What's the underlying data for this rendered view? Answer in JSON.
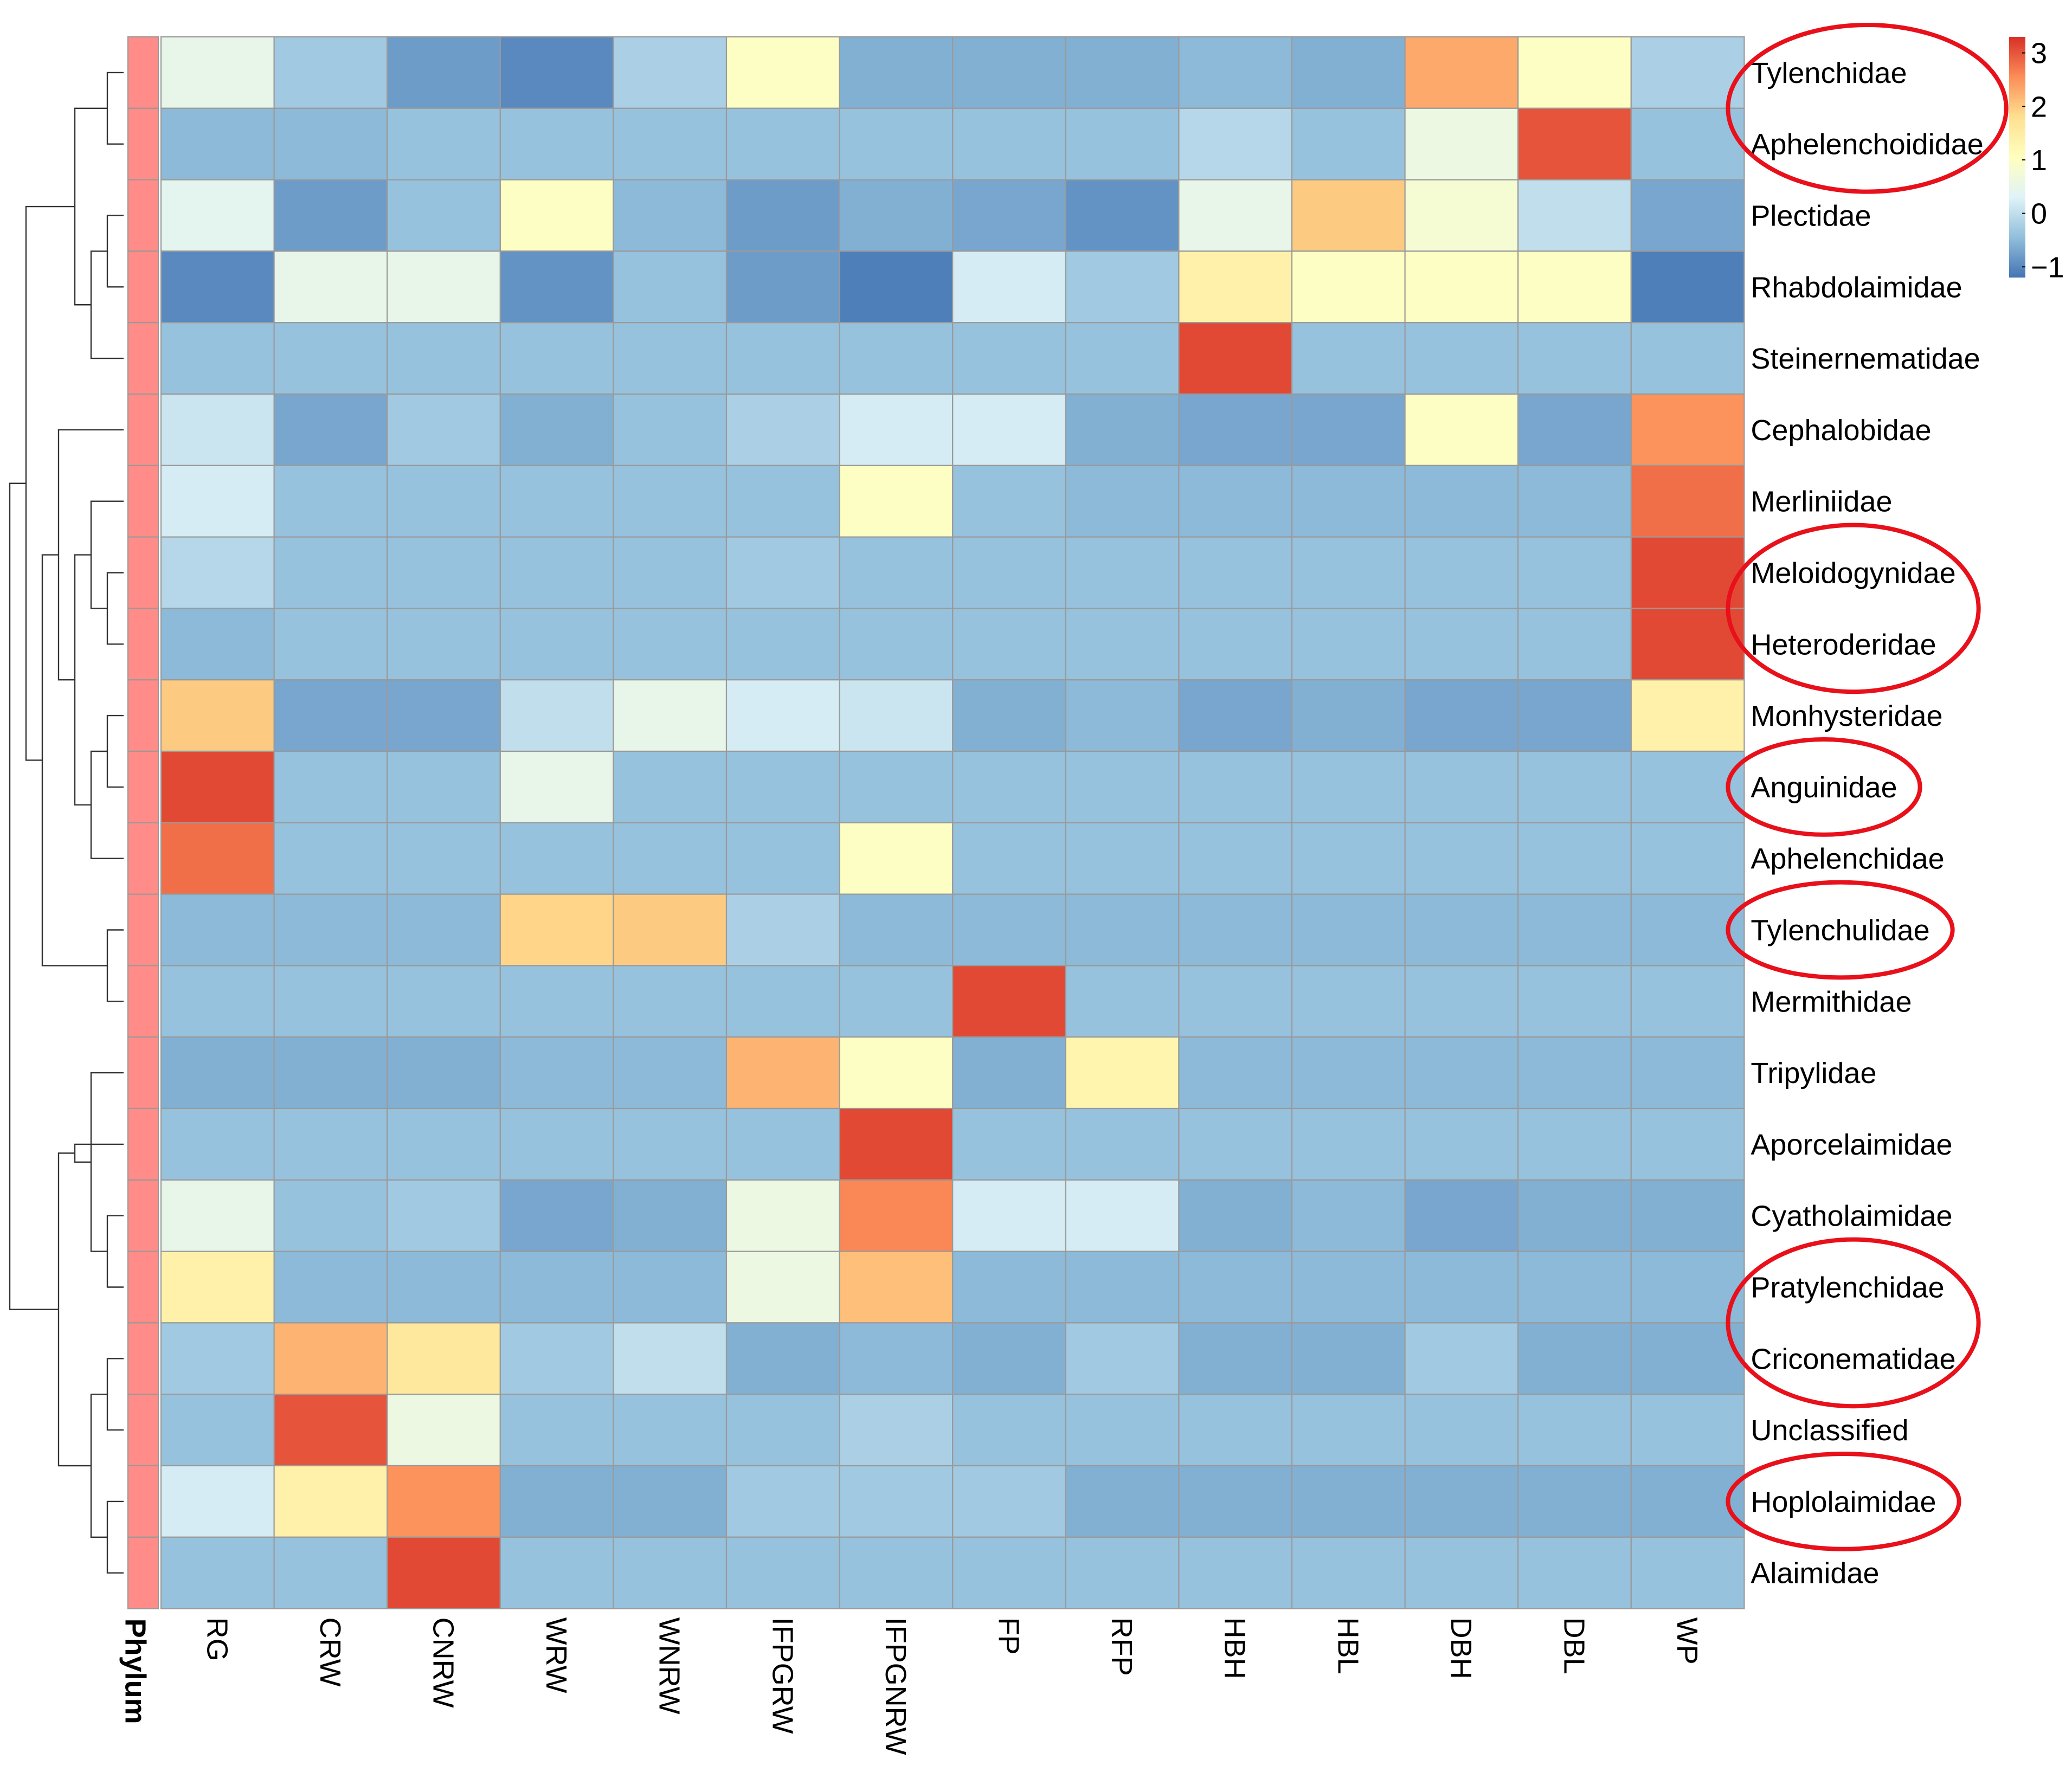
{
  "chart_data": {
    "type": "heatmap",
    "title": "",
    "columns": [
      "RG",
      "CRW",
      "CNRW",
      "WRW",
      "WNRW",
      "IFPGRW",
      "IFPGNRW",
      "FP",
      "RFP",
      "HBH",
      "HBL",
      "DBH",
      "DBL",
      "WP"
    ],
    "rows": [
      "Tylenchidae",
      "Aphelenchoididae",
      "Plectidae",
      "Rhabdolaimidae",
      "Steinernematidae",
      "Cephalobidae",
      "Merliniidae",
      "Meloidogynidae",
      "Heteroderidae",
      "Monhysteridae",
      "Anguinidae",
      "Aphelenchidae",
      "Tylenchulidae",
      "Mermithidae",
      "Tripylidae",
      "Aporcelaimidae",
      "Cyatholaimidae",
      "Pratylenchidae",
      "Criconematidae",
      "Unclassified",
      "Hoplolaimidae",
      "Alaimidae"
    ],
    "values": [
      [
        0.5,
        -0.3,
        -0.8,
        -1.0,
        -0.2,
        1.0,
        -0.6,
        -0.6,
        -0.6,
        -0.5,
        -0.6,
        2.3,
        1.0,
        -0.2
      ],
      [
        -0.5,
        -0.5,
        -0.4,
        -0.4,
        -0.4,
        -0.4,
        -0.4,
        -0.4,
        -0.4,
        -0.1,
        -0.4,
        0.6,
        3.0,
        -0.4
      ],
      [
        0.4,
        -0.8,
        -0.4,
        1.0,
        -0.5,
        -0.8,
        -0.6,
        -0.7,
        -0.9,
        0.5,
        2.0,
        0.8,
        0.0,
        -0.7
      ],
      [
        -1.0,
        0.5,
        0.5,
        -0.9,
        -0.4,
        -0.8,
        -1.1,
        0.2,
        -0.3,
        1.4,
        1.0,
        1.0,
        1.0,
        -1.1
      ],
      [
        -0.4,
        -0.4,
        -0.4,
        -0.4,
        -0.4,
        -0.4,
        -0.4,
        -0.4,
        -0.4,
        3.1,
        -0.4,
        -0.4,
        -0.4,
        -0.4
      ],
      [
        0.1,
        -0.7,
        -0.3,
        -0.6,
        -0.4,
        -0.2,
        0.2,
        0.2,
        -0.6,
        -0.7,
        -0.7,
        1.0,
        -0.7,
        2.5
      ],
      [
        0.2,
        -0.4,
        -0.4,
        -0.4,
        -0.4,
        -0.4,
        1.0,
        -0.4,
        -0.5,
        -0.5,
        -0.5,
        -0.5,
        -0.5,
        2.8
      ],
      [
        -0.1,
        -0.4,
        -0.4,
        -0.4,
        -0.4,
        -0.3,
        -0.4,
        -0.4,
        -0.4,
        -0.4,
        -0.4,
        -0.4,
        -0.4,
        3.1
      ],
      [
        -0.5,
        -0.4,
        -0.4,
        -0.4,
        -0.4,
        -0.4,
        -0.4,
        -0.4,
        -0.4,
        -0.4,
        -0.4,
        -0.4,
        -0.4,
        3.1
      ],
      [
        2.0,
        -0.7,
        -0.7,
        0.0,
        0.5,
        0.2,
        0.1,
        -0.6,
        -0.5,
        -0.7,
        -0.6,
        -0.7,
        -0.7,
        1.4
      ],
      [
        3.1,
        -0.4,
        -0.4,
        0.5,
        -0.4,
        -0.4,
        -0.4,
        -0.4,
        -0.4,
        -0.4,
        -0.4,
        -0.4,
        -0.4,
        -0.4
      ],
      [
        2.8,
        -0.4,
        -0.4,
        -0.4,
        -0.4,
        -0.4,
        1.0,
        -0.4,
        -0.4,
        -0.4,
        -0.4,
        -0.4,
        -0.4,
        -0.4
      ],
      [
        -0.5,
        -0.5,
        -0.5,
        1.9,
        2.0,
        -0.2,
        -0.5,
        -0.5,
        -0.5,
        -0.5,
        -0.5,
        -0.5,
        -0.5,
        -0.5
      ],
      [
        -0.4,
        -0.4,
        -0.4,
        -0.4,
        -0.4,
        -0.4,
        -0.4,
        3.1,
        -0.4,
        -0.4,
        -0.4,
        -0.4,
        -0.4,
        -0.4
      ],
      [
        -0.6,
        -0.6,
        -0.6,
        -0.5,
        -0.5,
        2.2,
        1.0,
        -0.6,
        1.3,
        -0.5,
        -0.5,
        -0.5,
        -0.5,
        -0.5
      ],
      [
        -0.4,
        -0.4,
        -0.4,
        -0.4,
        -0.4,
        -0.4,
        3.1,
        -0.4,
        -0.4,
        -0.4,
        -0.4,
        -0.4,
        -0.4,
        -0.4
      ],
      [
        0.5,
        -0.4,
        -0.3,
        -0.7,
        -0.6,
        0.6,
        2.6,
        0.2,
        0.2,
        -0.6,
        -0.5,
        -0.7,
        -0.6,
        -0.6
      ],
      [
        1.4,
        -0.5,
        -0.5,
        -0.5,
        -0.5,
        0.6,
        2.1,
        -0.5,
        -0.5,
        -0.5,
        -0.5,
        -0.5,
        -0.5,
        -0.5
      ],
      [
        -0.3,
        2.2,
        1.6,
        -0.3,
        0.0,
        -0.6,
        -0.5,
        -0.6,
        -0.3,
        -0.6,
        -0.6,
        -0.3,
        -0.6,
        -0.6
      ],
      [
        -0.4,
        3.0,
        0.6,
        -0.4,
        -0.4,
        -0.4,
        -0.2,
        -0.4,
        -0.4,
        -0.4,
        -0.4,
        -0.4,
        -0.4,
        -0.4
      ],
      [
        0.2,
        1.4,
        2.5,
        -0.6,
        -0.6,
        -0.3,
        -0.3,
        -0.3,
        -0.6,
        -0.6,
        -0.6,
        -0.6,
        -0.6,
        -0.6
      ],
      [
        -0.4,
        -0.4,
        3.1,
        -0.4,
        -0.4,
        -0.4,
        -0.4,
        -0.4,
        -0.4,
        -0.4,
        -0.4,
        -0.4,
        -0.4,
        -0.4
      ]
    ],
    "annotation": {
      "label": "Phylum",
      "color": "#FF8C88"
    },
    "legend": {
      "ticks": [
        3,
        2,
        1,
        0,
        -1
      ],
      "tick_labels": [
        "3",
        "2",
        "1",
        "0",
        "−1"
      ],
      "range": [
        -1.2,
        3.3
      ],
      "colors": [
        "#4575B4",
        "#91BFDB",
        "#E0F3F8",
        "#FFFFBF",
        "#FEE090",
        "#FC8D59",
        "#D73027"
      ],
      "placement": "top-right"
    },
    "highlighted_rows": [
      [
        "Tylenchidae",
        "Aphelenchoididae"
      ],
      [
        "Meloidogynidae",
        "Heteroderidae"
      ],
      [
        "Anguinidae"
      ],
      [
        "Tylenchulidae"
      ],
      [
        "Pratylenchidae",
        "Criconematidae"
      ],
      [
        "Hoplolaimidae"
      ]
    ],
    "highlight_color": "#E8101A",
    "dendrogram_merges": [
      [
        -1,
        -2
      ],
      [
        -3,
        -4
      ],
      [
        2,
        -5
      ],
      [
        1,
        3
      ],
      [
        -8,
        -9
      ],
      [
        -7,
        5
      ],
      [
        -10,
        -11
      ],
      [
        7,
        -12
      ],
      [
        6,
        8
      ],
      [
        -6,
        9
      ],
      [
        -13,
        -14
      ],
      [
        10,
        11
      ],
      [
        4,
        12
      ],
      [
        -19,
        -20
      ],
      [
        -21,
        -22
      ],
      [
        14,
        15
      ],
      [
        -17,
        -18
      ],
      [
        -15,
        17
      ],
      [
        -16,
        18
      ],
      [
        16,
        19
      ],
      [
        13,
        20
      ]
    ]
  }
}
